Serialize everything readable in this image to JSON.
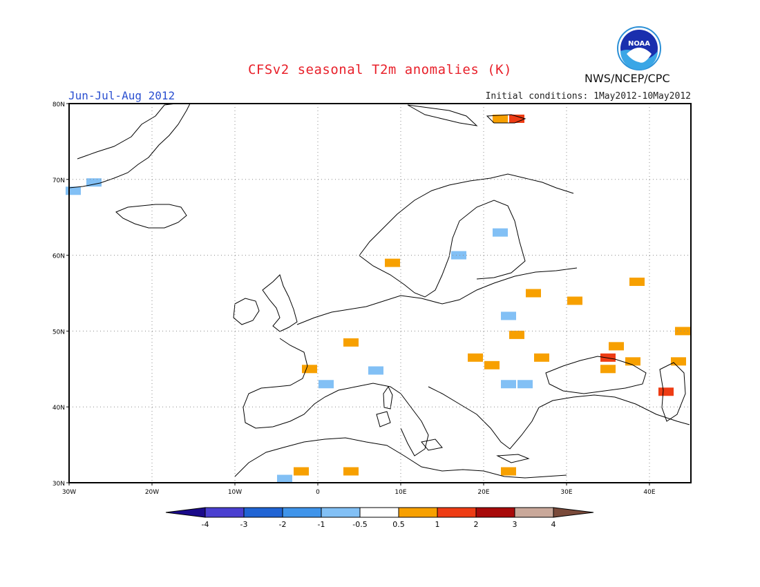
{
  "header": {
    "title": "CFSv2 seasonal T2m anomalies (K)",
    "season": "Jun-Jul-Aug 2012",
    "initial_conditions": "Initial conditions: 1May2012-10May2012",
    "agency": "NWS/NCEP/CPC",
    "logo_text": "NOAA"
  },
  "map": {
    "lat_labels": [
      "80N",
      "70N",
      "60N",
      "50N",
      "40N",
      "30N"
    ],
    "lon_labels": [
      "30W",
      "20W",
      "10W",
      "0",
      "10E",
      "20E",
      "30E",
      "40E"
    ],
    "colorbar": {
      "ticks": [
        "-4",
        "-3",
        "-2",
        "-1",
        "-0.5",
        "0.5",
        "1",
        "2",
        "3",
        "4"
      ],
      "colors": [
        "#1a0a8a",
        "#4a3fd0",
        "#2064d4",
        "#3f94ea",
        "#82c0f5",
        "#ffffff",
        "#f7a000",
        "#ee3c14",
        "#a80a0a",
        "#c9a89a",
        "#7a4a3a"
      ]
    },
    "anomaly_cells": [
      {
        "lon": -29.5,
        "lat": 68.5,
        "cls": "-0.5"
      },
      {
        "lon": -27,
        "lat": 69.6,
        "cls": "-0.5"
      },
      {
        "lon": 22,
        "lat": 78,
        "cls": "0.5"
      },
      {
        "lon": 24,
        "lat": 78,
        "cls": "1"
      },
      {
        "lon": 9,
        "lat": 59,
        "cls": "0.5"
      },
      {
        "lon": 17,
        "lat": 60,
        "cls": "-0.5"
      },
      {
        "lon": 22,
        "lat": 63,
        "cls": "-0.5"
      },
      {
        "lon": 26,
        "lat": 55,
        "cls": "0.5"
      },
      {
        "lon": 31,
        "lat": 54,
        "cls": "0.5"
      },
      {
        "lon": 23,
        "lat": 52,
        "cls": "-0.5"
      },
      {
        "lon": 24,
        "lat": 49.5,
        "cls": "0.5"
      },
      {
        "lon": 27,
        "lat": 46.5,
        "cls": "0.5"
      },
      {
        "lon": 19,
        "lat": 46.5,
        "cls": "0.5"
      },
      {
        "lon": 21,
        "lat": 45.5,
        "cls": "0.5"
      },
      {
        "lon": 23,
        "lat": 43,
        "cls": "-0.5"
      },
      {
        "lon": 25,
        "lat": 43,
        "cls": "-0.5"
      },
      {
        "lon": 4,
        "lat": 48.5,
        "cls": "0.5"
      },
      {
        "lon": -1,
        "lat": 45,
        "cls": "0.5"
      },
      {
        "lon": 1,
        "lat": 43,
        "cls": "-0.5"
      },
      {
        "lon": 7,
        "lat": 44.8,
        "cls": "-0.5"
      },
      {
        "lon": 36,
        "lat": 48,
        "cls": "0.5"
      },
      {
        "lon": 35,
        "lat": 46.5,
        "cls": "1"
      },
      {
        "lon": 35,
        "lat": 45,
        "cls": "0.5"
      },
      {
        "lon": 38,
        "lat": 46,
        "cls": "0.5"
      },
      {
        "lon": 38.5,
        "lat": 56.5,
        "cls": "0.5"
      },
      {
        "lon": 44,
        "lat": 50,
        "cls": "0.5"
      },
      {
        "lon": 43.5,
        "lat": 46,
        "cls": "0.5"
      },
      {
        "lon": 42,
        "lat": 42,
        "cls": "1"
      },
      {
        "lon": -2,
        "lat": 31.5,
        "cls": "0.5"
      },
      {
        "lon": 4,
        "lat": 31.5,
        "cls": "0.5"
      },
      {
        "lon": 23,
        "lat": 31.5,
        "cls": "0.5"
      },
      {
        "lon": -4,
        "lat": 30.5,
        "cls": "-0.5"
      }
    ]
  }
}
